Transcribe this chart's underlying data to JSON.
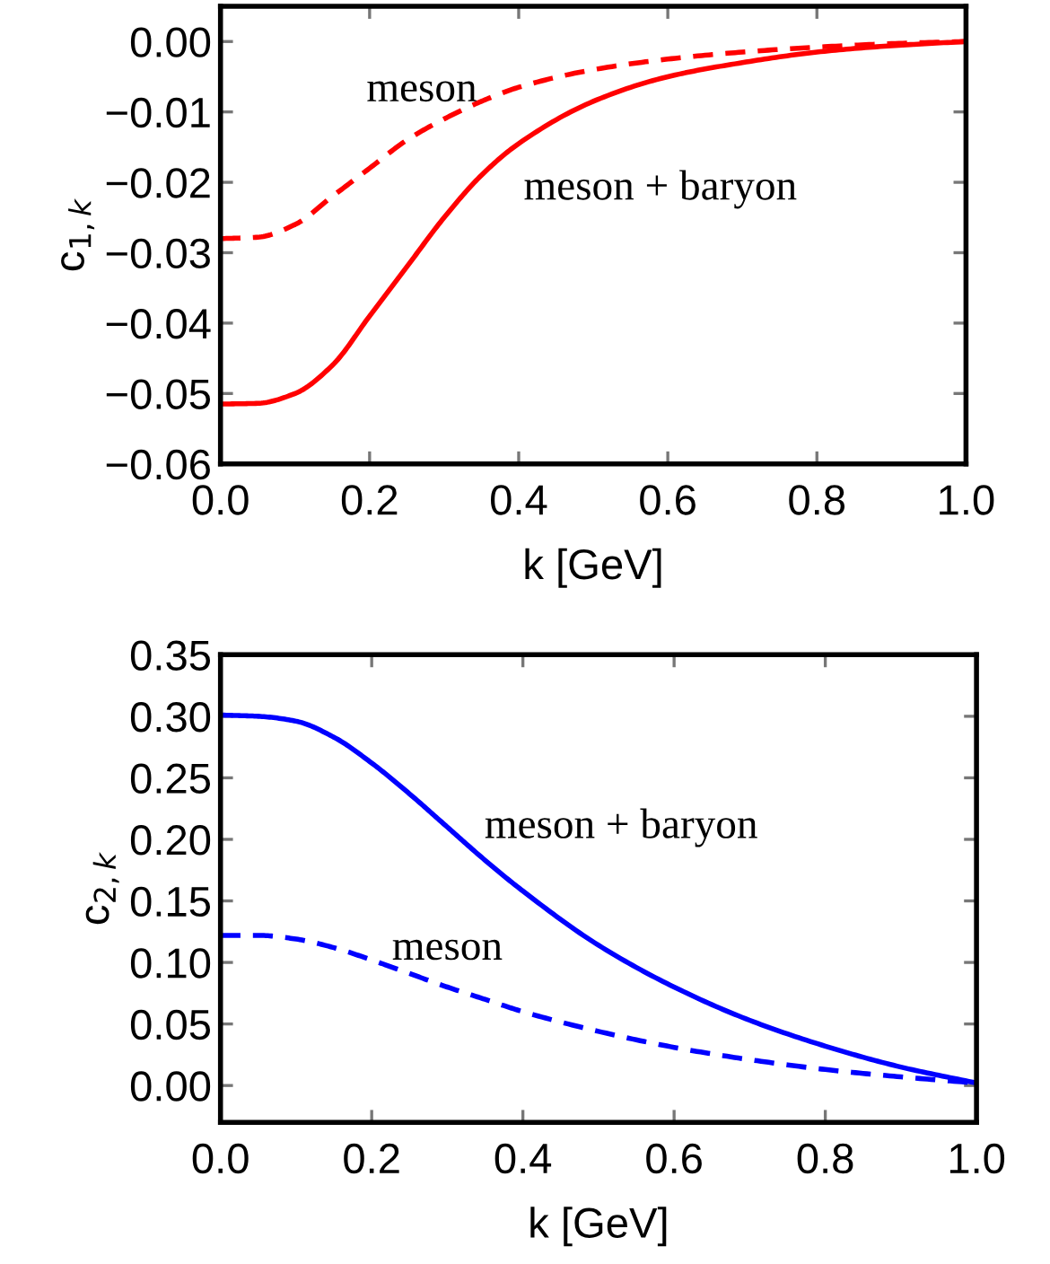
{
  "chart_data": [
    {
      "type": "line",
      "xlabel": "k [GeV]",
      "ylabel": "c$_{1,k}$",
      "xlim": [
        0,
        1
      ],
      "ylim": [
        -0.06,
        0.005
      ],
      "xticks": [
        {
          "value": 0,
          "label": "0.0"
        },
        {
          "value": 0.2,
          "label": "0.2"
        },
        {
          "value": 0.4,
          "label": "0.4"
        },
        {
          "value": 0.6,
          "label": "0.6"
        },
        {
          "value": 0.8,
          "label": "0.8"
        },
        {
          "value": 1,
          "label": "1.0"
        }
      ],
      "yticks": [
        {
          "value": -0.06,
          "label": "−0.06"
        },
        {
          "value": -0.05,
          "label": "−0.05"
        },
        {
          "value": -0.04,
          "label": "−0.04"
        },
        {
          "value": -0.03,
          "label": "−0.03"
        },
        {
          "value": -0.02,
          "label": "−0.02"
        },
        {
          "value": -0.01,
          "label": "−0.01"
        },
        {
          "value": 0,
          "label": "0.00"
        }
      ],
      "x": [
        0,
        0.05,
        0.1,
        0.15,
        0.2,
        0.25,
        0.3,
        0.35,
        0.4,
        0.5,
        0.6,
        0.7,
        0.8,
        0.9,
        1.0
      ],
      "series": [
        {
          "name": "meson",
          "color": "#ff0000",
          "line_style": "dashed",
          "values": [
            -0.028,
            -0.0278,
            -0.026,
            -0.022,
            -0.018,
            -0.014,
            -0.011,
            -0.0085,
            -0.0065,
            -0.004,
            -0.0025,
            -0.0015,
            -0.0008,
            -0.0003,
            0
          ]
        },
        {
          "name": "meson + baryon",
          "color": "#ff0000",
          "line_style": "solid",
          "values": [
            -0.0515,
            -0.0514,
            -0.05,
            -0.046,
            -0.039,
            -0.032,
            -0.025,
            -0.019,
            -0.0145,
            -0.0085,
            -0.005,
            -0.003,
            -0.0015,
            -0.0006,
            0
          ]
        }
      ],
      "grid": false,
      "legend": false
    },
    {
      "type": "line",
      "xlabel": "k [GeV]",
      "ylabel": "c$_{2,k}$",
      "xlim": [
        0,
        1
      ],
      "ylim": [
        -0.03,
        0.35
      ],
      "xticks": [
        {
          "value": 0,
          "label": "0.0"
        },
        {
          "value": 0.2,
          "label": "0.2"
        },
        {
          "value": 0.4,
          "label": "0.4"
        },
        {
          "value": 0.6,
          "label": "0.6"
        },
        {
          "value": 0.8,
          "label": "0.8"
        },
        {
          "value": 1,
          "label": "1.0"
        }
      ],
      "yticks": [
        {
          "value": 0,
          "label": "0.00"
        },
        {
          "value": 0.05,
          "label": "0.05"
        },
        {
          "value": 0.1,
          "label": "0.10"
        },
        {
          "value": 0.15,
          "label": "0.15"
        },
        {
          "value": 0.2,
          "label": "0.20"
        },
        {
          "value": 0.25,
          "label": "0.25"
        },
        {
          "value": 0.3,
          "label": "0.30"
        },
        {
          "value": 0.35,
          "label": "0.35"
        }
      ],
      "x": [
        0,
        0.05,
        0.1,
        0.15,
        0.2,
        0.25,
        0.3,
        0.35,
        0.4,
        0.5,
        0.6,
        0.7,
        0.8,
        0.9,
        1.0
      ],
      "series": [
        {
          "name": "meson + baryon",
          "color": "#0000ff",
          "line_style": "solid",
          "values": [
            0.301,
            0.3,
            0.296,
            0.283,
            0.262,
            0.237,
            0.21,
            0.183,
            0.158,
            0.114,
            0.08,
            0.053,
            0.032,
            0.015,
            0.002
          ]
        },
        {
          "name": "meson",
          "color": "#0000ff",
          "line_style": "dashed",
          "values": [
            0.122,
            0.122,
            0.119,
            0.112,
            0.102,
            0.091,
            0.08,
            0.07,
            0.06,
            0.044,
            0.031,
            0.021,
            0.013,
            0.007,
            0.002
          ]
        }
      ],
      "grid": false,
      "legend": false
    }
  ]
}
